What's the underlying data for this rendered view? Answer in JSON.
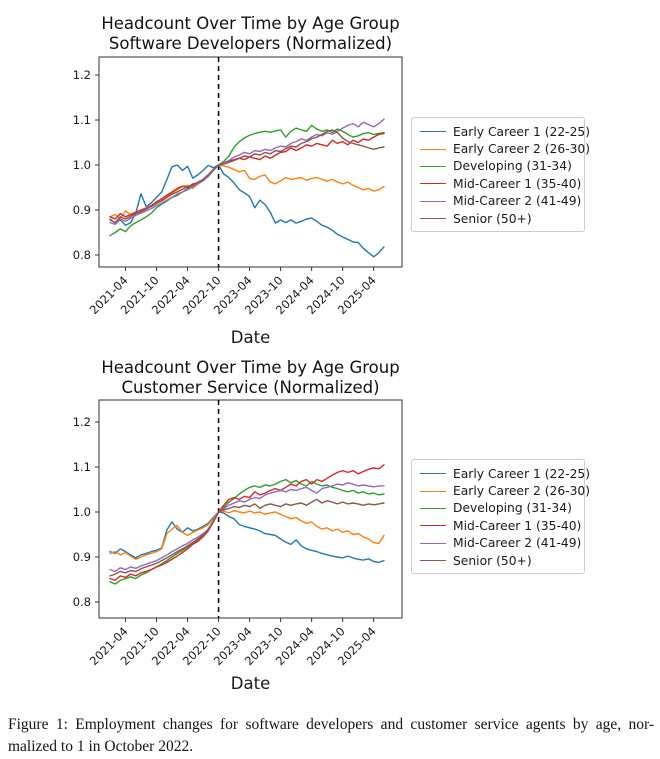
{
  "figure": {
    "caption_line1": "Figure 1: Employment changes for software developers and customer service agents by age, nor-",
    "caption_line2": "malized to 1 in October 2022."
  },
  "chart_data": [
    {
      "type": "line",
      "title_line1": "Headcount Over Time by Age Group",
      "title_line2": "Software Developers (Normalized)",
      "xlabel": "Date",
      "x_start": "2021-01",
      "x_end": "2025-06",
      "event_line_x": "2022-10",
      "x_tick_labels": [
        "2021-04",
        "2021-10",
        "2022-04",
        "2022-10",
        "2023-04",
        "2023-10",
        "2024-04",
        "2024-10",
        "2025-04"
      ],
      "y_ticks": [
        0.8,
        0.9,
        1.0,
        1.1,
        1.2
      ],
      "ylim": [
        0.773,
        1.24
      ],
      "legend_position": "right-outside",
      "grid": false,
      "series": [
        {
          "name": "Early Career 1 (22-25)",
          "color": "#1f77b4",
          "values": [
            0.88,
            0.871,
            0.878,
            0.866,
            0.872,
            0.893,
            0.936,
            0.907,
            0.916,
            0.928,
            0.94,
            0.968,
            0.996,
            1.0,
            0.988,
            0.997,
            0.971,
            0.978,
            0.988,
            0.999,
            0.994,
            1.0,
            0.98,
            0.972,
            0.96,
            0.945,
            0.938,
            0.93,
            0.905,
            0.922,
            0.912,
            0.895,
            0.871,
            0.878,
            0.872,
            0.878,
            0.871,
            0.875,
            0.88,
            0.882,
            0.875,
            0.866,
            0.862,
            0.855,
            0.846,
            0.84,
            0.835,
            0.829,
            0.828,
            0.815,
            0.805,
            0.796,
            0.805,
            0.818
          ]
        },
        {
          "name": "Early Career 2 (26-30)",
          "color": "#ff7f0e",
          "values": [
            0.885,
            0.89,
            0.881,
            0.898,
            0.89,
            0.895,
            0.9,
            0.905,
            0.908,
            0.915,
            0.922,
            0.93,
            0.938,
            0.945,
            0.952,
            0.955,
            0.948,
            0.958,
            0.966,
            0.975,
            0.99,
            1.0,
            0.998,
            0.995,
            0.99,
            0.985,
            0.988,
            0.97,
            0.968,
            0.975,
            0.978,
            0.962,
            0.958,
            0.965,
            0.972,
            0.968,
            0.97,
            0.972,
            0.966,
            0.97,
            0.972,
            0.968,
            0.964,
            0.968,
            0.962,
            0.958,
            0.962,
            0.955,
            0.95,
            0.945,
            0.948,
            0.942,
            0.945,
            0.952
          ]
        },
        {
          "name": "Developing (31-34)",
          "color": "#2ca02c",
          "values": [
            0.843,
            0.85,
            0.858,
            0.852,
            0.865,
            0.872,
            0.878,
            0.885,
            0.893,
            0.905,
            0.913,
            0.92,
            0.928,
            0.935,
            0.94,
            0.948,
            0.952,
            0.958,
            0.966,
            0.975,
            0.988,
            1.0,
            1.008,
            1.02,
            1.04,
            1.052,
            1.06,
            1.066,
            1.07,
            1.073,
            1.075,
            1.073,
            1.076,
            1.078,
            1.062,
            1.075,
            1.082,
            1.078,
            1.075,
            1.088,
            1.08,
            1.075,
            1.078,
            1.072,
            1.08,
            1.075,
            1.068,
            1.062,
            1.065,
            1.07,
            1.072,
            1.068,
            1.07,
            1.072
          ]
        },
        {
          "name": "Mid-Career 1 (35-40)",
          "color": "#d62728",
          "values": [
            0.885,
            0.88,
            0.892,
            0.885,
            0.89,
            0.895,
            0.9,
            0.903,
            0.91,
            0.918,
            0.925,
            0.933,
            0.94,
            0.948,
            0.953,
            0.95,
            0.958,
            0.96,
            0.968,
            0.978,
            0.99,
            1.0,
            1.003,
            1.008,
            1.012,
            1.015,
            1.012,
            1.018,
            1.015,
            1.012,
            1.02,
            1.015,
            1.022,
            1.028,
            1.03,
            1.038,
            1.032,
            1.038,
            1.045,
            1.042,
            1.048,
            1.045,
            1.042,
            1.055,
            1.048,
            1.052,
            1.045,
            1.055,
            1.05,
            1.058,
            1.055,
            1.062,
            1.068,
            1.07
          ]
        },
        {
          "name": "Mid-Career 2 (41-49)",
          "color": "#9467bd",
          "values": [
            0.872,
            0.868,
            0.88,
            0.875,
            0.882,
            0.888,
            0.893,
            0.898,
            0.903,
            0.91,
            0.915,
            0.922,
            0.928,
            0.932,
            0.94,
            0.945,
            0.952,
            0.958,
            0.965,
            0.975,
            0.988,
            1.0,
            1.005,
            1.01,
            1.018,
            1.022,
            1.028,
            1.025,
            1.032,
            1.03,
            1.035,
            1.032,
            1.038,
            1.042,
            1.04,
            1.048,
            1.052,
            1.058,
            1.055,
            1.062,
            1.068,
            1.065,
            1.072,
            1.068,
            1.075,
            1.082,
            1.088,
            1.092,
            1.085,
            1.095,
            1.09,
            1.085,
            1.092,
            1.102
          ]
        },
        {
          "name": "Senior (50+)",
          "color": "#8c564b",
          "values": [
            0.878,
            0.872,
            0.885,
            0.88,
            0.886,
            0.892,
            0.896,
            0.902,
            0.908,
            0.915,
            0.92,
            0.928,
            0.935,
            0.94,
            0.946,
            0.952,
            0.955,
            0.962,
            0.968,
            0.978,
            0.99,
            1.0,
            1.002,
            1.006,
            1.01,
            1.015,
            1.02,
            1.018,
            1.025,
            1.022,
            1.028,
            1.025,
            1.032,
            1.03,
            1.036,
            1.042,
            1.04,
            1.048,
            1.052,
            1.058,
            1.062,
            1.068,
            1.075,
            1.078,
            1.072,
            1.06,
            1.052,
            1.048,
            1.045,
            1.042,
            1.038,
            1.035,
            1.038,
            1.04
          ]
        }
      ]
    },
    {
      "type": "line",
      "title_line1": "Headcount Over Time by Age Group",
      "title_line2": "Customer Service (Normalized)",
      "xlabel": "Date",
      "x_start": "2021-01",
      "x_end": "2025-06",
      "event_line_x": "2022-10",
      "x_tick_labels": [
        "2021-04",
        "2021-10",
        "2022-04",
        "2022-10",
        "2023-04",
        "2023-10",
        "2024-04",
        "2024-10",
        "2025-04"
      ],
      "y_ticks": [
        0.8,
        0.9,
        1.0,
        1.1,
        1.2
      ],
      "ylim": [
        0.764,
        1.249
      ],
      "legend_position": "right-outside",
      "grid": false,
      "series": [
        {
          "name": "Early Career 1 (22-25)",
          "color": "#1f77b4",
          "values": [
            0.912,
            0.908,
            0.918,
            0.912,
            0.905,
            0.898,
            0.905,
            0.908,
            0.912,
            0.915,
            0.92,
            0.96,
            0.978,
            0.962,
            0.955,
            0.965,
            0.958,
            0.962,
            0.968,
            0.975,
            0.988,
            1.0,
            0.998,
            0.99,
            0.985,
            0.972,
            0.968,
            0.965,
            0.962,
            0.958,
            0.952,
            0.95,
            0.948,
            0.94,
            0.933,
            0.928,
            0.938,
            0.925,
            0.918,
            0.915,
            0.912,
            0.908,
            0.905,
            0.902,
            0.9,
            0.898,
            0.902,
            0.898,
            0.895,
            0.893,
            0.896,
            0.89,
            0.888,
            0.892
          ]
        },
        {
          "name": "Early Career 2 (26-30)",
          "color": "#ff7f0e",
          "values": [
            0.908,
            0.912,
            0.905,
            0.91,
            0.902,
            0.895,
            0.9,
            0.905,
            0.908,
            0.912,
            0.918,
            0.952,
            0.962,
            0.97,
            0.955,
            0.948,
            0.955,
            0.96,
            0.965,
            0.972,
            0.985,
            1.0,
            1.002,
            0.998,
            1.003,
            1.0,
            0.998,
            1.002,
            0.998,
            1.0,
            0.995,
            0.998,
            1.0,
            0.995,
            0.99,
            0.985,
            0.988,
            0.98,
            0.975,
            0.978,
            0.968,
            0.962,
            0.965,
            0.958,
            0.962,
            0.955,
            0.958,
            0.95,
            0.952,
            0.945,
            0.94,
            0.932,
            0.93,
            0.948
          ]
        },
        {
          "name": "Developing (31-34)",
          "color": "#2ca02c",
          "values": [
            0.845,
            0.84,
            0.848,
            0.852,
            0.856,
            0.852,
            0.86,
            0.865,
            0.872,
            0.878,
            0.885,
            0.892,
            0.9,
            0.908,
            0.915,
            0.922,
            0.93,
            0.938,
            0.95,
            0.962,
            0.98,
            1.0,
            1.01,
            1.022,
            1.03,
            1.04,
            1.048,
            1.055,
            1.058,
            1.055,
            1.06,
            1.058,
            1.062,
            1.068,
            1.072,
            1.065,
            1.07,
            1.062,
            1.058,
            1.068,
            1.062,
            1.058,
            1.06,
            1.055,
            1.052,
            1.048,
            1.045,
            1.048,
            1.042,
            1.045,
            1.04,
            1.042,
            1.038,
            1.04
          ]
        },
        {
          "name": "Mid-Career 1 (35-40)",
          "color": "#d62728",
          "values": [
            0.852,
            0.848,
            0.858,
            0.855,
            0.862,
            0.858,
            0.865,
            0.868,
            0.872,
            0.878,
            0.882,
            0.888,
            0.895,
            0.902,
            0.91,
            0.918,
            0.928,
            0.935,
            0.945,
            0.958,
            0.978,
            1.0,
            1.015,
            1.028,
            1.032,
            1.028,
            1.035,
            1.032,
            1.045,
            1.038,
            1.042,
            1.048,
            1.052,
            1.048,
            1.055,
            1.062,
            1.058,
            1.068,
            1.072,
            1.062,
            1.072,
            1.068,
            1.075,
            1.082,
            1.088,
            1.092,
            1.088,
            1.092,
            1.085,
            1.09,
            1.095,
            1.098,
            1.096,
            1.105
          ]
        },
        {
          "name": "Mid-Career 2 (41-49)",
          "color": "#9467bd",
          "values": [
            0.872,
            0.868,
            0.876,
            0.872,
            0.878,
            0.875,
            0.88,
            0.884,
            0.888,
            0.892,
            0.898,
            0.905,
            0.912,
            0.918,
            0.925,
            0.93,
            0.938,
            0.944,
            0.952,
            0.962,
            0.98,
            1.0,
            1.008,
            1.015,
            1.02,
            1.025,
            1.022,
            1.028,
            1.032,
            1.03,
            1.038,
            1.042,
            1.045,
            1.048,
            1.045,
            1.05,
            1.048,
            1.052,
            1.055,
            1.048,
            1.042,
            1.052,
            1.055,
            1.058,
            1.062,
            1.06,
            1.065,
            1.062,
            1.058,
            1.06,
            1.058,
            1.056,
            1.058,
            1.058
          ]
        },
        {
          "name": "Senior (50+)",
          "color": "#8c564b",
          "values": [
            0.858,
            0.862,
            0.868,
            0.865,
            0.87,
            0.868,
            0.874,
            0.878,
            0.882,
            0.886,
            0.892,
            0.898,
            0.905,
            0.912,
            0.918,
            0.925,
            0.932,
            0.94,
            0.948,
            0.96,
            0.978,
            1.0,
            1.005,
            1.008,
            1.012,
            1.01,
            1.015,
            1.012,
            1.018,
            1.008,
            1.015,
            1.018,
            1.015,
            1.012,
            1.018,
            1.015,
            1.018,
            1.02,
            1.015,
            1.022,
            1.028,
            1.02,
            1.025,
            1.022,
            1.018,
            1.022,
            1.018,
            1.02,
            1.018,
            1.015,
            1.018,
            1.016,
            1.018,
            1.02
          ]
        }
      ]
    }
  ]
}
